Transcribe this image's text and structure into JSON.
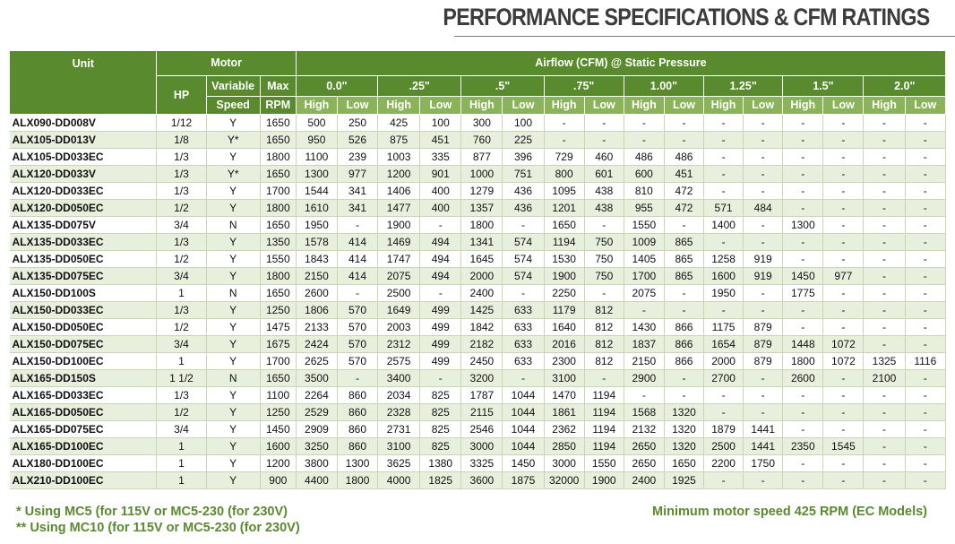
{
  "title": "PERFORMANCE SPECIFICATIONS & CFM RATINGS",
  "header": {
    "unit": "Unit",
    "motor": "Motor",
    "hp": "HP",
    "variable": "Variable",
    "speed": "Speed",
    "max": "Max",
    "rpm": "RPM",
    "airflow": "Airflow (CFM) @ Static Pressure",
    "pressures": [
      "0.0\"",
      ".25\"",
      ".5\"",
      ".75\"",
      "1.00\"",
      "1.25\"",
      "1.5\"",
      "2.0\""
    ],
    "high": "High",
    "low": "Low"
  },
  "rows": [
    {
      "unit": "ALX090-DD008V",
      "hp": "1/12",
      "speed": "Y",
      "rpm": "1650",
      "cfm": [
        "500",
        "250",
        "425",
        "100",
        "300",
        "100",
        "-",
        "-",
        "-",
        "-",
        "-",
        "-",
        "-",
        "-",
        "-",
        "-"
      ]
    },
    {
      "unit": "ALX105-DD013V",
      "hp": "1/8",
      "speed": "Y*",
      "rpm": "1650",
      "cfm": [
        "950",
        "526",
        "875",
        "451",
        "760",
        "225",
        "-",
        "-",
        "-",
        "-",
        "-",
        "-",
        "-",
        "-",
        "-",
        "-"
      ]
    },
    {
      "unit": "ALX105-DD033EC",
      "hp": "1/3",
      "speed": "Y",
      "rpm": "1800",
      "cfm": [
        "1100",
        "239",
        "1003",
        "335",
        "877",
        "396",
        "729",
        "460",
        "486",
        "486",
        "-",
        "-",
        "-",
        "-",
        "-",
        "-"
      ]
    },
    {
      "unit": "ALX120-DD033V",
      "hp": "1/3",
      "speed": "Y*",
      "rpm": "1650",
      "cfm": [
        "1300",
        "977",
        "1200",
        "901",
        "1000",
        "751",
        "800",
        "601",
        "600",
        "451",
        "-",
        "-",
        "-",
        "-",
        "-",
        "-"
      ]
    },
    {
      "unit": "ALX120-DD033EC",
      "hp": "1/3",
      "speed": "Y",
      "rpm": "1700",
      "cfm": [
        "1544",
        "341",
        "1406",
        "400",
        "1279",
        "436",
        "1095",
        "438",
        "810",
        "472",
        "-",
        "-",
        "-",
        "-",
        "-",
        "-"
      ]
    },
    {
      "unit": "ALX120-DD050EC",
      "hp": "1/2",
      "speed": "Y",
      "rpm": "1800",
      "cfm": [
        "1610",
        "341",
        "1477",
        "400",
        "1357",
        "436",
        "1201",
        "438",
        "955",
        "472",
        "571",
        "484",
        "-",
        "-",
        "-",
        "-"
      ]
    },
    {
      "unit": "ALX135-DD075V",
      "hp": "3/4",
      "speed": "N",
      "rpm": "1650",
      "cfm": [
        "1950",
        "-",
        "1900",
        "-",
        "1800",
        "-",
        "1650",
        "-",
        "1550",
        "-",
        "1400",
        "-",
        "1300",
        "-",
        "-",
        "-"
      ]
    },
    {
      "unit": "ALX135-DD033EC",
      "hp": "1/3",
      "speed": "Y",
      "rpm": "1350",
      "cfm": [
        "1578",
        "414",
        "1469",
        "494",
        "1341",
        "574",
        "1194",
        "750",
        "1009",
        "865",
        "-",
        "-",
        "-",
        "-",
        "-",
        "-"
      ]
    },
    {
      "unit": "ALX135-DD050EC",
      "hp": "1/2",
      "speed": "Y",
      "rpm": "1550",
      "cfm": [
        "1843",
        "414",
        "1747",
        "494",
        "1645",
        "574",
        "1530",
        "750",
        "1405",
        "865",
        "1258",
        "919",
        "-",
        "-",
        "-",
        "-"
      ]
    },
    {
      "unit": "ALX135-DD075EC",
      "hp": "3/4",
      "speed": "Y",
      "rpm": "1800",
      "cfm": [
        "2150",
        "414",
        "2075",
        "494",
        "2000",
        "574",
        "1900",
        "750",
        "1700",
        "865",
        "1600",
        "919",
        "1450",
        "977",
        "-",
        "-"
      ]
    },
    {
      "unit": "ALX150-DD100S",
      "hp": "1",
      "speed": "N",
      "rpm": "1650",
      "cfm": [
        "2600",
        "-",
        "2500",
        "-",
        "2400",
        "-",
        "2250",
        "-",
        "2075",
        "-",
        "1950",
        "-",
        "1775",
        "-",
        "-",
        "-"
      ]
    },
    {
      "unit": "ALX150-DD033EC",
      "hp": "1/3",
      "speed": "Y",
      "rpm": "1250",
      "cfm": [
        "1806",
        "570",
        "1649",
        "499",
        "1425",
        "633",
        "1179",
        "812",
        "-",
        "-",
        "-",
        "-",
        "-",
        "-",
        "-",
        "-"
      ]
    },
    {
      "unit": "ALX150-DD050EC",
      "hp": "1/2",
      "speed": "Y",
      "rpm": "1475",
      "cfm": [
        "2133",
        "570",
        "2003",
        "499",
        "1842",
        "633",
        "1640",
        "812",
        "1430",
        "866",
        "1175",
        "879",
        "-",
        "-",
        "-",
        "-"
      ]
    },
    {
      "unit": "ALX150-DD075EC",
      "hp": "3/4",
      "speed": "Y",
      "rpm": "1675",
      "cfm": [
        "2424",
        "570",
        "2312",
        "499",
        "2182",
        "633",
        "2016",
        "812",
        "1837",
        "866",
        "1654",
        "879",
        "1448",
        "1072",
        "-",
        "-"
      ]
    },
    {
      "unit": "ALX150-DD100EC",
      "hp": "1",
      "speed": "Y",
      "rpm": "1700",
      "cfm": [
        "2625",
        "570",
        "2575",
        "499",
        "2450",
        "633",
        "2300",
        "812",
        "2150",
        "866",
        "2000",
        "879",
        "1800",
        "1072",
        "1325",
        "1116"
      ]
    },
    {
      "unit": "ALX165-DD150S",
      "hp": "1 1/2",
      "speed": "N",
      "rpm": "1650",
      "cfm": [
        "3500",
        "-",
        "3400",
        "-",
        "3200",
        "-",
        "3100",
        "-",
        "2900",
        "-",
        "2700",
        "-",
        "2600",
        "-",
        "2100",
        "-"
      ]
    },
    {
      "unit": "ALX165-DD033EC",
      "hp": "1/3",
      "speed": "Y",
      "rpm": "1100",
      "cfm": [
        "2264",
        "860",
        "2034",
        "825",
        "1787",
        "1044",
        "1470",
        "1194",
        "-",
        "-",
        "-",
        "-",
        "-",
        "-",
        "-",
        "-"
      ]
    },
    {
      "unit": "ALX165-DD050EC",
      "hp": "1/2",
      "speed": "Y",
      "rpm": "1250",
      "cfm": [
        "2529",
        "860",
        "2328",
        "825",
        "2115",
        "1044",
        "1861",
        "1194",
        "1568",
        "1320",
        "-",
        "-",
        "-",
        "-",
        "-",
        "-"
      ]
    },
    {
      "unit": "ALX165-DD075EC",
      "hp": "3/4",
      "speed": "Y",
      "rpm": "1450",
      "cfm": [
        "2909",
        "860",
        "2731",
        "825",
        "2546",
        "1044",
        "2362",
        "1194",
        "2132",
        "1320",
        "1879",
        "1441",
        "-",
        "-",
        "-",
        "-"
      ]
    },
    {
      "unit": "ALX165-DD100EC",
      "hp": "1",
      "speed": "Y",
      "rpm": "1600",
      "cfm": [
        "3250",
        "860",
        "3100",
        "825",
        "3000",
        "1044",
        "2850",
        "1194",
        "2650",
        "1320",
        "2500",
        "1441",
        "2350",
        "1545",
        "-",
        "-"
      ]
    },
    {
      "unit": "ALX180-DD100EC",
      "hp": "1",
      "speed": "Y",
      "rpm": "1200",
      "cfm": [
        "3800",
        "1300",
        "3625",
        "1380",
        "3325",
        "1450",
        "3000",
        "1550",
        "2650",
        "1650",
        "2200",
        "1750",
        "-",
        "-",
        "-",
        "-"
      ]
    },
    {
      "unit": "ALX210-DD100EC",
      "hp": "1",
      "speed": "Y",
      "rpm": "900",
      "cfm": [
        "4400",
        "1800",
        "4000",
        "1825",
        "3600",
        "1875",
        "32000",
        "1900",
        "2400",
        "1925",
        "-",
        "-",
        "-",
        "-",
        "-",
        "-"
      ]
    }
  ],
  "footnotes": {
    "note1": "* Using MC5 (for 115V or MC5-230 (for 230V)",
    "note2": "** Using MC10 (for 115V or MC5-230 (for 230V)",
    "right": "Minimum motor speed 425 RPM (EC Models)"
  },
  "colors": {
    "header_dark": "#5a8a2e",
    "header_light": "#8ab35a",
    "row_alt": "#e8efdc",
    "footnote": "#5a8a2e"
  }
}
